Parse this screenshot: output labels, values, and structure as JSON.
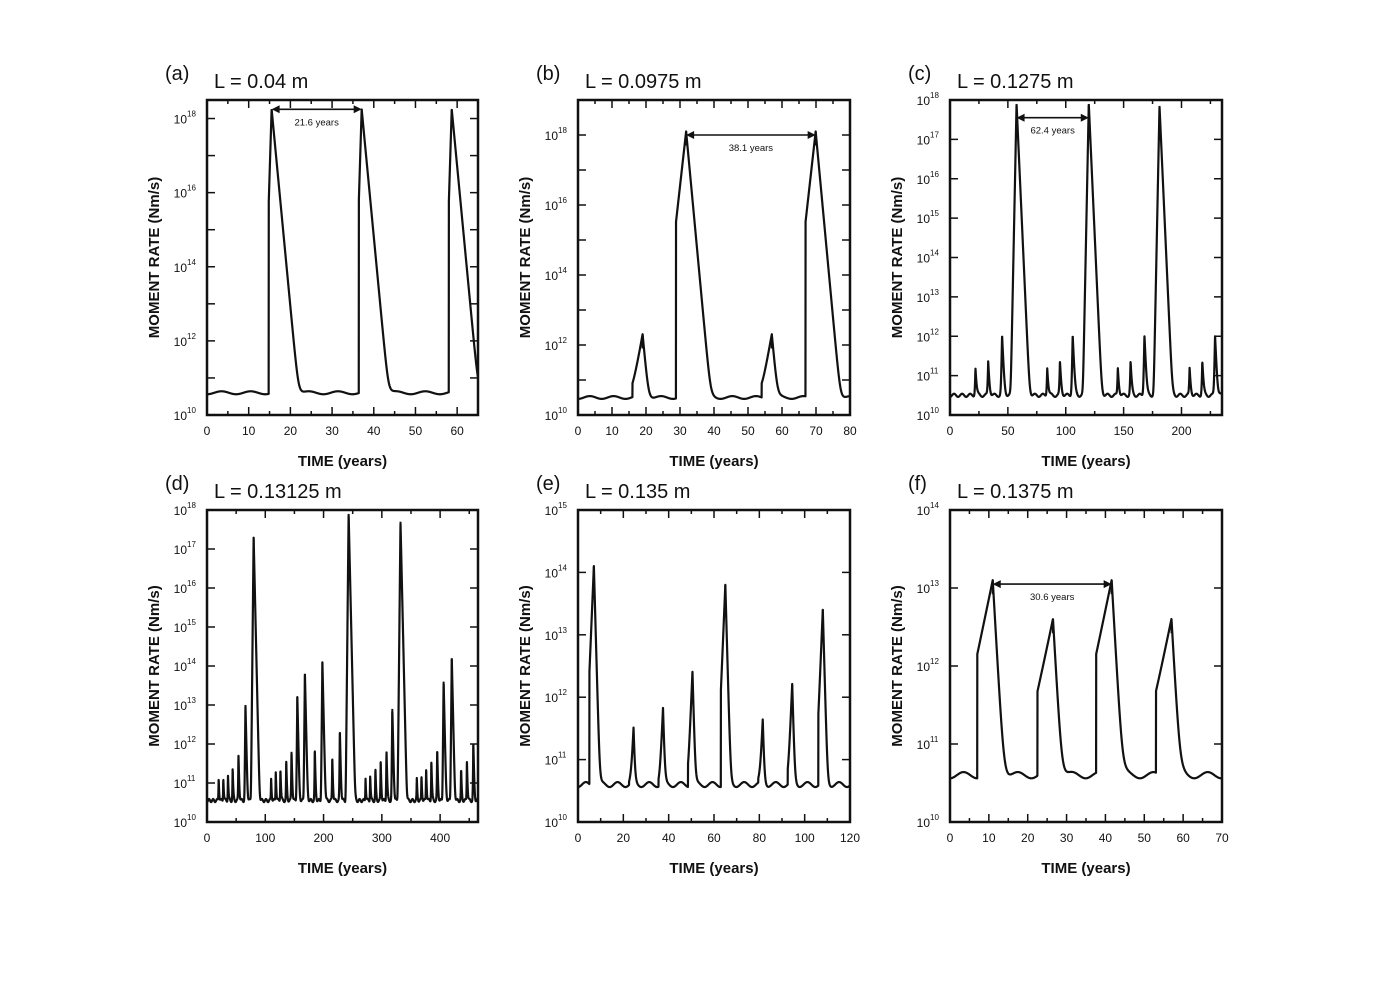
{
  "chart_data": [
    {
      "type": "line",
      "panel_label": "(a)",
      "title": "L = 0.04 m",
      "xlabel": "TIME (years)",
      "ylabel": "MOMENT RATE (Nm/s)",
      "y_scale": "log",
      "xlim": [
        0,
        65
      ],
      "ylim_exp": [
        10,
        18.5
      ],
      "x_ticks": [
        0,
        10,
        20,
        30,
        40,
        50,
        60
      ],
      "y_tick_labels": [
        {
          "exp": 10,
          "text": "10",
          "sup": "10"
        },
        {
          "exp": 12,
          "text": "10",
          "sup": "12"
        },
        {
          "exp": 14,
          "text": "10",
          "sup": "14"
        },
        {
          "exp": 16,
          "text": "10",
          "sup": "16"
        },
        {
          "exp": 18,
          "text": "10",
          "sup": "18"
        }
      ],
      "baseline_exp": 10.6,
      "decay": 2.2,
      "peaks": [
        {
          "t": 15.5,
          "exp": 18.25,
          "rise": 0.12,
          "w": 0.7
        },
        {
          "t": 37.1,
          "exp": 18.25,
          "rise": 0.12,
          "w": 0.7
        },
        {
          "t": 58.7,
          "exp": 18.25,
          "rise": 0.12,
          "w": 0.7
        }
      ],
      "annotation": {
        "text": "21.6 years",
        "t1": 15.5,
        "t2": 37.1,
        "exp": 18.25
      }
    },
    {
      "type": "line",
      "panel_label": "(b)",
      "title": "L = 0.0975 m",
      "xlabel": "TIME (years)",
      "ylabel": "MOMENT RATE (Nm/s)",
      "y_scale": "log",
      "xlim": [
        0,
        80
      ],
      "ylim_exp": [
        10,
        19
      ],
      "x_ticks": [
        0,
        10,
        20,
        30,
        40,
        50,
        60,
        70,
        80
      ],
      "y_tick_labels": [
        {
          "exp": 10,
          "text": "10",
          "sup": "10"
        },
        {
          "exp": 12,
          "text": "10",
          "sup": "12"
        },
        {
          "exp": 14,
          "text": "10",
          "sup": "14"
        },
        {
          "exp": 16,
          "text": "10",
          "sup": "16"
        },
        {
          "exp": 18,
          "text": "10",
          "sup": "18"
        }
      ],
      "baseline_exp": 10.5,
      "decay": 2.5,
      "peaks": [
        {
          "t": 19.0,
          "exp": 12.3,
          "rise": 0.8,
          "w": 3
        },
        {
          "t": 31.8,
          "exp": 18.1,
          "rise": 0.5,
          "w": 3
        },
        {
          "t": 57.0,
          "exp": 12.3,
          "rise": 0.8,
          "w": 3
        },
        {
          "t": 69.9,
          "exp": 18.1,
          "rise": 0.5,
          "w": 3
        }
      ],
      "annotation": {
        "text": "38.1 years",
        "t1": 31.8,
        "t2": 69.9,
        "exp": 18.0
      }
    },
    {
      "type": "line",
      "panel_label": "(c)",
      "title": "L = 0.1275 m",
      "xlabel": "TIME (years)",
      "ylabel": "MOMENT RATE (Nm/s)",
      "y_scale": "log",
      "xlim": [
        0,
        235
      ],
      "ylim_exp": [
        10,
        18
      ],
      "x_ticks": [
        0,
        50,
        100,
        150,
        200
      ],
      "y_tick_labels": [
        {
          "exp": 10,
          "text": "10",
          "sup": "10"
        },
        {
          "exp": 11,
          "text": "10",
          "sup": "11"
        },
        {
          "exp": 12,
          "text": "10",
          "sup": "12"
        },
        {
          "exp": 13,
          "text": "10",
          "sup": "13"
        },
        {
          "exp": 14,
          "text": "10",
          "sup": "14"
        },
        {
          "exp": 15,
          "text": "10",
          "sup": "15"
        },
        {
          "exp": 16,
          "text": "10",
          "sup": "16"
        },
        {
          "exp": 17,
          "text": "10",
          "sup": "17"
        },
        {
          "exp": 18,
          "text": "10",
          "sup": "18"
        }
      ],
      "baseline_exp": 10.5,
      "decay": 4,
      "peaks": [
        {
          "t": 22,
          "exp": 11.1,
          "rise": 0.3,
          "w": 8
        },
        {
          "t": 33,
          "exp": 11.3,
          "rise": 0.3,
          "w": 8
        },
        {
          "t": 45,
          "exp": 12.0,
          "rise": 0.3,
          "w": 8
        },
        {
          "t": 57.5,
          "exp": 17.9,
          "rise": 0.3,
          "w": 8
        },
        {
          "t": 84,
          "exp": 11.1,
          "rise": 0.3,
          "w": 8
        },
        {
          "t": 95,
          "exp": 11.3,
          "rise": 0.3,
          "w": 8
        },
        {
          "t": 106,
          "exp": 12.0,
          "rise": 0.3,
          "w": 8
        },
        {
          "t": 119.9,
          "exp": 17.9,
          "rise": 0.3,
          "w": 8
        },
        {
          "t": 145,
          "exp": 11.1,
          "rise": 0.3,
          "w": 8
        },
        {
          "t": 156,
          "exp": 11.3,
          "rise": 0.3,
          "w": 8
        },
        {
          "t": 168,
          "exp": 12.0,
          "rise": 0.3,
          "w": 8
        },
        {
          "t": 181,
          "exp": 17.85,
          "rise": 0.3,
          "w": 8
        },
        {
          "t": 207,
          "exp": 11.1,
          "rise": 0.3,
          "w": 8
        },
        {
          "t": 218,
          "exp": 11.3,
          "rise": 0.3,
          "w": 8
        },
        {
          "t": 229,
          "exp": 12.0,
          "rise": 0.3,
          "w": 8
        }
      ],
      "annotation": {
        "text": "62.4 years",
        "t1": 57.5,
        "t2": 119.9,
        "exp": 17.55
      }
    },
    {
      "type": "line",
      "panel_label": "(d)",
      "title": "L = 0.13125 m",
      "xlabel": "TIME (years)",
      "ylabel": "MOMENT RATE (Nm/s)",
      "y_scale": "log",
      "xlim": [
        0,
        465
      ],
      "ylim_exp": [
        10,
        18
      ],
      "x_ticks": [
        0,
        100,
        200,
        300,
        400
      ],
      "y_tick_labels": [
        {
          "exp": 10,
          "text": "10",
          "sup": "10"
        },
        {
          "exp": 11,
          "text": "10",
          "sup": "11"
        },
        {
          "exp": 12,
          "text": "10",
          "sup": "12"
        },
        {
          "exp": 13,
          "text": "10",
          "sup": "13"
        },
        {
          "exp": 14,
          "text": "10",
          "sup": "14"
        },
        {
          "exp": 15,
          "text": "10",
          "sup": "15"
        },
        {
          "exp": 16,
          "text": "10",
          "sup": "16"
        },
        {
          "exp": 17,
          "text": "10",
          "sup": "17"
        },
        {
          "exp": 18,
          "text": "10",
          "sup": "18"
        }
      ],
      "baseline_exp": 10.55,
      "decay": 4,
      "peaks": [
        {
          "t": 20,
          "exp": 11.0,
          "rise": 0.3,
          "w": 6
        },
        {
          "t": 28,
          "exp": 11.0,
          "rise": 0.3,
          "w": 6
        },
        {
          "t": 36,
          "exp": 11.1,
          "rise": 0.3,
          "w": 6
        },
        {
          "t": 44,
          "exp": 11.3,
          "rise": 0.3,
          "w": 6
        },
        {
          "t": 54,
          "exp": 11.7,
          "rise": 0.3,
          "w": 6
        },
        {
          "t": 66,
          "exp": 13.0,
          "rise": 0.3,
          "w": 6
        },
        {
          "t": 80,
          "exp": 17.3,
          "rise": 0.3,
          "w": 6
        },
        {
          "t": 110,
          "exp": 11.0,
          "rise": 0.3,
          "w": 6
        },
        {
          "t": 118,
          "exp": 11.2,
          "rise": 0.3,
          "w": 6
        },
        {
          "t": 126,
          "exp": 11.3,
          "rise": 0.3,
          "w": 6
        },
        {
          "t": 136,
          "exp": 11.5,
          "rise": 0.3,
          "w": 6
        },
        {
          "t": 145,
          "exp": 11.8,
          "rise": 0.3,
          "w": 6
        },
        {
          "t": 155,
          "exp": 13.2,
          "rise": 0.3,
          "w": 6
        },
        {
          "t": 168,
          "exp": 13.8,
          "rise": 0.3,
          "w": 6
        },
        {
          "t": 185,
          "exp": 11.8,
          "rise": 0.3,
          "w": 6
        },
        {
          "t": 198,
          "exp": 14.1,
          "rise": 0.3,
          "w": 6
        },
        {
          "t": 215,
          "exp": 11.6,
          "rise": 0.3,
          "w": 6
        },
        {
          "t": 228,
          "exp": 12.3,
          "rise": 0.3,
          "w": 6
        },
        {
          "t": 243,
          "exp": 17.9,
          "rise": 0.3,
          "w": 6
        },
        {
          "t": 272,
          "exp": 11.0,
          "rise": 0.3,
          "w": 6
        },
        {
          "t": 280,
          "exp": 11.1,
          "rise": 0.3,
          "w": 6
        },
        {
          "t": 289,
          "exp": 11.3,
          "rise": 0.3,
          "w": 6
        },
        {
          "t": 298,
          "exp": 11.5,
          "rise": 0.3,
          "w": 6
        },
        {
          "t": 308,
          "exp": 11.8,
          "rise": 0.3,
          "w": 6
        },
        {
          "t": 318,
          "exp": 12.9,
          "rise": 0.3,
          "w": 6
        },
        {
          "t": 332,
          "exp": 17.7,
          "rise": 0.3,
          "w": 6
        },
        {
          "t": 360,
          "exp": 11.0,
          "rise": 0.3,
          "w": 6
        },
        {
          "t": 368,
          "exp": 11.1,
          "rise": 0.3,
          "w": 6
        },
        {
          "t": 376,
          "exp": 11.3,
          "rise": 0.3,
          "w": 6
        },
        {
          "t": 385,
          "exp": 11.5,
          "rise": 0.3,
          "w": 6
        },
        {
          "t": 395,
          "exp": 11.8,
          "rise": 0.3,
          "w": 6
        },
        {
          "t": 406,
          "exp": 13.6,
          "rise": 0.3,
          "w": 6
        },
        {
          "t": 420,
          "exp": 14.2,
          "rise": 0.3,
          "w": 6
        },
        {
          "t": 436,
          "exp": 11.3,
          "rise": 0.3,
          "w": 6
        },
        {
          "t": 446,
          "exp": 11.5,
          "rise": 0.3,
          "w": 6
        },
        {
          "t": 457,
          "exp": 12.0,
          "rise": 0.3,
          "w": 6
        }
      ],
      "annotation": null
    },
    {
      "type": "line",
      "panel_label": "(e)",
      "title": "L = 0.135 m",
      "xlabel": "TIME (years)",
      "ylabel": "MOMENT RATE (Nm/s)",
      "y_scale": "log",
      "xlim": [
        0,
        120
      ],
      "ylim_exp": [
        10,
        15
      ],
      "x_ticks": [
        0,
        20,
        40,
        60,
        80,
        100,
        120
      ],
      "y_tick_labels": [
        {
          "exp": 10,
          "text": "10",
          "sup": "10"
        },
        {
          "exp": 11,
          "text": "10",
          "sup": "11"
        },
        {
          "exp": 12,
          "text": "10",
          "sup": "12"
        },
        {
          "exp": 13,
          "text": "10",
          "sup": "13"
        },
        {
          "exp": 14,
          "text": "10",
          "sup": "14"
        },
        {
          "exp": 15,
          "text": "10",
          "sup": "15"
        }
      ],
      "baseline_exp": 10.6,
      "decay": 2,
      "peaks": [
        {
          "t": 7,
          "exp": 14.1,
          "rise": 0.5,
          "w": 2
        },
        {
          "t": 24.5,
          "exp": 11.45,
          "rise": 0.5,
          "w": 2
        },
        {
          "t": 37.5,
          "exp": 11.8,
          "rise": 0.5,
          "w": 2
        },
        {
          "t": 50.5,
          "exp": 12.4,
          "rise": 0.5,
          "w": 2
        },
        {
          "t": 65,
          "exp": 13.8,
          "rise": 0.5,
          "w": 2
        },
        {
          "t": 81.5,
          "exp": 11.6,
          "rise": 0.5,
          "w": 2
        },
        {
          "t": 94.5,
          "exp": 12.2,
          "rise": 0.5,
          "w": 2
        },
        {
          "t": 108,
          "exp": 13.4,
          "rise": 0.5,
          "w": 2
        }
      ],
      "annotation": null
    },
    {
      "type": "line",
      "panel_label": "(f)",
      "title": "L = 0.1375 m",
      "xlabel": "TIME (years)",
      "ylabel": "MOMENT RATE (Nm/s)",
      "y_scale": "log",
      "xlim": [
        0,
        70
      ],
      "ylim_exp": [
        10,
        14
      ],
      "x_ticks": [
        0,
        10,
        20,
        30,
        40,
        50,
        60,
        70
      ],
      "y_tick_labels": [
        {
          "exp": 10,
          "text": "10",
          "sup": "10"
        },
        {
          "exp": 11,
          "text": "10",
          "sup": "11"
        },
        {
          "exp": 12,
          "text": "10",
          "sup": "12"
        },
        {
          "exp": 13,
          "text": "10",
          "sup": "13"
        },
        {
          "exp": 14,
          "text": "10",
          "sup": "14"
        }
      ],
      "baseline_exp": 10.6,
      "decay": 3,
      "peaks": [
        {
          "t": 11,
          "exp": 13.1,
          "rise": 1.8,
          "w": 4
        },
        {
          "t": 26.5,
          "exp": 12.6,
          "rise": 1.8,
          "w": 4
        },
        {
          "t": 41.6,
          "exp": 13.1,
          "rise": 1.8,
          "w": 4
        },
        {
          "t": 57,
          "exp": 12.6,
          "rise": 1.8,
          "w": 4
        }
      ],
      "annotation": {
        "text": "30.6 years",
        "t1": 11,
        "t2": 41.6,
        "exp": 13.05
      }
    }
  ]
}
